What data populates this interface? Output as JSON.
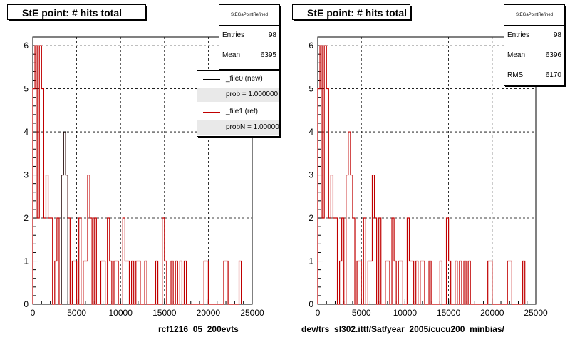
{
  "colors": {
    "ref": "#c00000",
    "new": "#000000",
    "grid": "#000000"
  },
  "left_panel": {
    "title": "StE point: # hits total",
    "stats": {
      "header": "StEGaPointRefined",
      "entries_label": "Entries",
      "entries": "98",
      "mean_label": "Mean",
      "mean": "6395"
    },
    "legend": [
      {
        "label": "_file0 (new)",
        "color": "#000000"
      },
      {
        "label": "prob = 1.000000",
        "color": "#000000"
      },
      {
        "label": "_file1 (ref)",
        "color": "#c00000"
      },
      {
        "label": "probN = 1.000000",
        "color": "#c00000"
      }
    ],
    "footer": "rcf1216_05_200evts"
  },
  "right_panel": {
    "title": "StE point: # hits total",
    "stats": {
      "header": "StEGaPointRefined",
      "entries_label": "Entries",
      "entries": "98",
      "mean_label": "Mean",
      "mean": "6396",
      "rms_label": "RMS",
      "rms": "6170"
    },
    "footer": "dev/trs_sl302.ittf/Sat/year_2005/cucu200_minbias/"
  },
  "chart_data": [
    {
      "type": "histogram",
      "title": "StE point: # hits total",
      "xlim": [
        0,
        25000
      ],
      "ylim": [
        0,
        6.2
      ],
      "xticks": [
        0,
        5000,
        10000,
        15000,
        20000,
        25000
      ],
      "yticks": [
        0,
        1,
        2,
        3,
        4,
        5,
        6
      ],
      "grid": true,
      "bin_width": 250,
      "series": [
        {
          "name": "_file1 (ref)",
          "color": "#c00000",
          "bins": [
            [
              0,
              5
            ],
            [
              250,
              6
            ],
            [
              500,
              2
            ],
            [
              750,
              6
            ],
            [
              1000,
              5
            ],
            [
              1250,
              2
            ],
            [
              1500,
              3
            ],
            [
              1750,
              2
            ],
            [
              2000,
              2
            ],
            [
              2250,
              0
            ],
            [
              2500,
              1
            ],
            [
              2750,
              2
            ],
            [
              3000,
              0
            ],
            [
              3250,
              3
            ],
            [
              3500,
              4
            ],
            [
              3750,
              3
            ],
            [
              4000,
              2
            ],
            [
              4250,
              0
            ],
            [
              4500,
              1
            ],
            [
              4750,
              1
            ],
            [
              5000,
              0
            ],
            [
              5250,
              2
            ],
            [
              5500,
              0
            ],
            [
              5750,
              1
            ],
            [
              6000,
              1
            ],
            [
              6250,
              3
            ],
            [
              6500,
              2
            ],
            [
              6750,
              0
            ],
            [
              7000,
              2
            ],
            [
              7250,
              0
            ],
            [
              7500,
              0
            ],
            [
              7750,
              1
            ],
            [
              8000,
              1
            ],
            [
              8250,
              0
            ],
            [
              8500,
              2
            ],
            [
              8750,
              1
            ],
            [
              9000,
              0
            ],
            [
              9250,
              1
            ],
            [
              9500,
              1
            ],
            [
              9750,
              0
            ],
            [
              10000,
              0
            ],
            [
              10250,
              2
            ],
            [
              10500,
              1
            ],
            [
              10750,
              1
            ],
            [
              11000,
              0
            ],
            [
              11250,
              1
            ],
            [
              11500,
              0
            ],
            [
              11750,
              1
            ],
            [
              12000,
              1
            ],
            [
              12250,
              0
            ],
            [
              12500,
              0
            ],
            [
              12750,
              1
            ],
            [
              13000,
              0
            ],
            [
              13250,
              0
            ],
            [
              13500,
              0
            ],
            [
              13750,
              0
            ],
            [
              14000,
              1
            ],
            [
              14250,
              0
            ],
            [
              14500,
              0
            ],
            [
              14750,
              2
            ],
            [
              15000,
              1
            ],
            [
              15250,
              0
            ],
            [
              15500,
              0
            ],
            [
              15750,
              1
            ],
            [
              16000,
              0
            ],
            [
              16250,
              1
            ],
            [
              16500,
              0
            ],
            [
              16750,
              1
            ],
            [
              17000,
              0
            ],
            [
              17250,
              1
            ],
            [
              17500,
              0
            ],
            [
              17750,
              0
            ],
            [
              18000,
              0
            ],
            [
              18250,
              0
            ],
            [
              18500,
              0
            ],
            [
              18750,
              0
            ],
            [
              19000,
              0
            ],
            [
              19250,
              0
            ],
            [
              19500,
              1
            ],
            [
              19750,
              1
            ],
            [
              20000,
              0
            ],
            [
              20250,
              0
            ],
            [
              20500,
              0
            ],
            [
              20750,
              0
            ],
            [
              21000,
              0
            ],
            [
              21250,
              0
            ],
            [
              21500,
              0
            ],
            [
              21750,
              1
            ],
            [
              22000,
              1
            ],
            [
              22250,
              0
            ],
            [
              22500,
              0
            ],
            [
              22750,
              0
            ],
            [
              23000,
              0
            ],
            [
              23250,
              0
            ],
            [
              23500,
              1
            ]
          ]
        },
        {
          "name": "_file0 (new)",
          "color": "#000000",
          "bins": [
            [
              3250,
              3
            ],
            [
              3500,
              4
            ],
            [
              3750,
              3
            ]
          ]
        }
      ]
    },
    {
      "type": "histogram",
      "title": "StE point: # hits total",
      "xlim": [
        0,
        25000
      ],
      "ylim": [
        0,
        6.2
      ],
      "xticks": [
        0,
        5000,
        10000,
        15000,
        20000,
        25000
      ],
      "yticks": [
        0,
        1,
        2,
        3,
        4,
        5,
        6
      ],
      "grid": true,
      "bin_width": 250,
      "series": [
        {
          "name": "_file1 (ref)",
          "color": "#c00000",
          "bins": [
            [
              0,
              5
            ],
            [
              250,
              6
            ],
            [
              500,
              2
            ],
            [
              750,
              6
            ],
            [
              1000,
              5
            ],
            [
              1250,
              2
            ],
            [
              1500,
              3
            ],
            [
              1750,
              2
            ],
            [
              2000,
              2
            ],
            [
              2250,
              0
            ],
            [
              2500,
              1
            ],
            [
              2750,
              2
            ],
            [
              3000,
              0
            ],
            [
              3250,
              3
            ],
            [
              3500,
              4
            ],
            [
              3750,
              3
            ],
            [
              4000,
              2
            ],
            [
              4250,
              0
            ],
            [
              4500,
              1
            ],
            [
              4750,
              1
            ],
            [
              5000,
              0
            ],
            [
              5250,
              2
            ],
            [
              5500,
              0
            ],
            [
              5750,
              1
            ],
            [
              6000,
              1
            ],
            [
              6250,
              3
            ],
            [
              6500,
              2
            ],
            [
              6750,
              0
            ],
            [
              7000,
              2
            ],
            [
              7250,
              0
            ],
            [
              7500,
              0
            ],
            [
              7750,
              1
            ],
            [
              8000,
              1
            ],
            [
              8250,
              0
            ],
            [
              8500,
              2
            ],
            [
              8750,
              1
            ],
            [
              9000,
              0
            ],
            [
              9250,
              1
            ],
            [
              9500,
              1
            ],
            [
              9750,
              0
            ],
            [
              10000,
              0
            ],
            [
              10250,
              2
            ],
            [
              10500,
              1
            ],
            [
              10750,
              1
            ],
            [
              11000,
              0
            ],
            [
              11250,
              1
            ],
            [
              11500,
              0
            ],
            [
              11750,
              1
            ],
            [
              12000,
              1
            ],
            [
              12250,
              0
            ],
            [
              12500,
              0
            ],
            [
              12750,
              1
            ],
            [
              13000,
              0
            ],
            [
              13250,
              0
            ],
            [
              13500,
              0
            ],
            [
              13750,
              0
            ],
            [
              14000,
              1
            ],
            [
              14250,
              0
            ],
            [
              14500,
              0
            ],
            [
              14750,
              2
            ],
            [
              15000,
              1
            ],
            [
              15250,
              0
            ],
            [
              15500,
              0
            ],
            [
              15750,
              1
            ],
            [
              16000,
              0
            ],
            [
              16250,
              1
            ],
            [
              16500,
              0
            ],
            [
              16750,
              1
            ],
            [
              17000,
              0
            ],
            [
              17250,
              1
            ],
            [
              17500,
              0
            ],
            [
              17750,
              0
            ],
            [
              18000,
              0
            ],
            [
              18250,
              0
            ],
            [
              18500,
              0
            ],
            [
              18750,
              0
            ],
            [
              19000,
              0
            ],
            [
              19250,
              0
            ],
            [
              19500,
              1
            ],
            [
              19750,
              1
            ],
            [
              20000,
              0
            ],
            [
              20250,
              0
            ],
            [
              20500,
              0
            ],
            [
              20750,
              0
            ],
            [
              21000,
              0
            ],
            [
              21250,
              0
            ],
            [
              21500,
              0
            ],
            [
              21750,
              1
            ],
            [
              22000,
              1
            ],
            [
              22250,
              0
            ],
            [
              22500,
              0
            ],
            [
              22750,
              0
            ],
            [
              23000,
              0
            ],
            [
              23250,
              0
            ],
            [
              23500,
              1
            ]
          ]
        }
      ]
    }
  ]
}
